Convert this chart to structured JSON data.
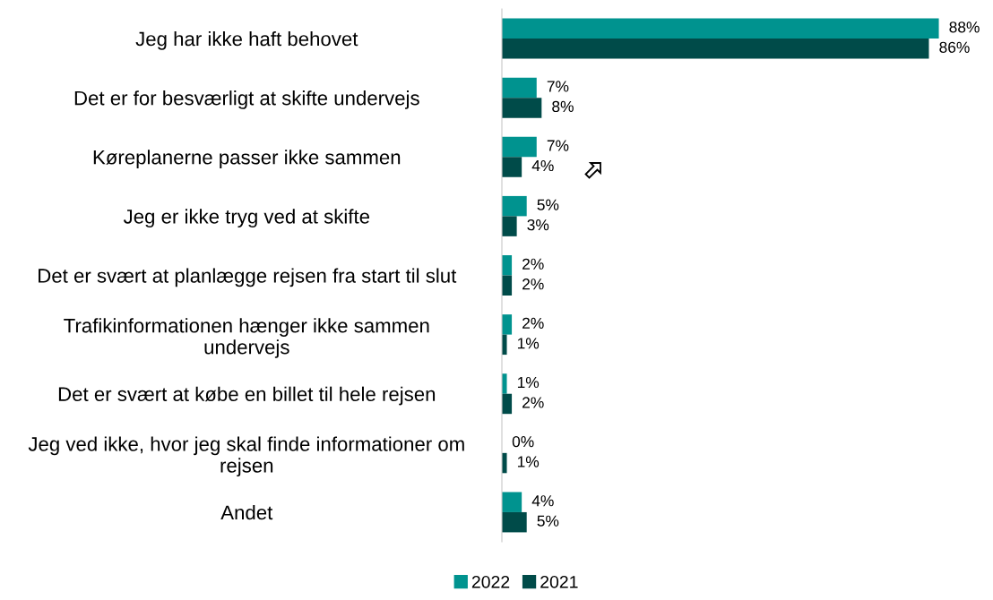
{
  "chart_data": {
    "type": "bar",
    "orientation": "horizontal",
    "legend": "bottom",
    "grid": false,
    "categories": [
      "Jeg har ikke haft behovet",
      "Det er for besværligt at skifte undervejs",
      "Køreplanerne passer ikke sammen",
      "Jeg er ikke tryg ved at skifte",
      "Det er svært at planlægge rejsen fra start til slut",
      "Trafikinformationen hænger ikke sammen\nundervejs",
      "Det er svært at købe en billet til hele rejsen",
      "Jeg ved ikke, hvor jeg skal finde informationer om\nrejsen",
      "Andet"
    ],
    "series": [
      {
        "name": "2022",
        "color": "#00938f",
        "values": [
          88,
          7,
          7,
          5,
          2,
          2,
          1,
          0,
          4
        ],
        "value_labels": [
          "88%",
          "7%",
          "7%",
          "5%",
          "2%",
          "2%",
          "1%",
          "0%",
          "4%"
        ]
      },
      {
        "name": "2021",
        "color": "#004b49",
        "values": [
          86,
          8,
          4,
          3,
          2,
          1,
          2,
          1,
          5
        ],
        "value_labels": [
          "86%",
          "8%",
          "4%",
          "3%",
          "2%",
          "1%",
          "2%",
          "1%",
          "5%"
        ]
      }
    ]
  }
}
